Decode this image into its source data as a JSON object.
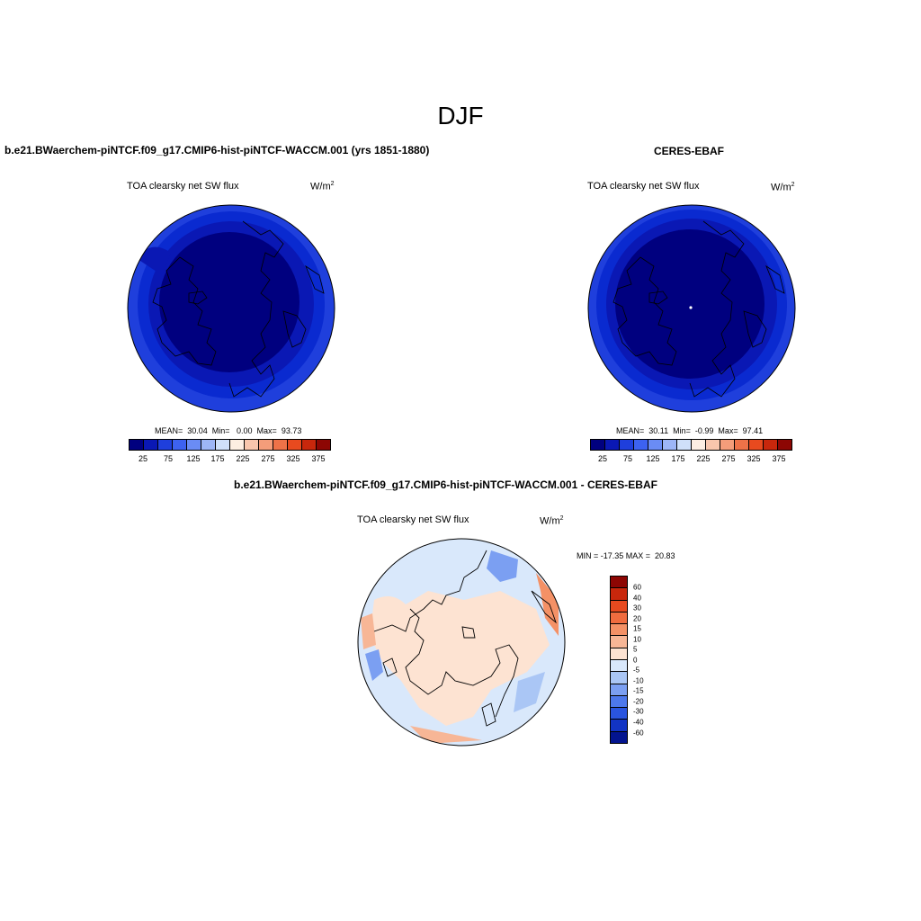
{
  "figure": {
    "title": "DJF"
  },
  "panels": [
    {
      "heading": "b.e21.BWaerchem-piNTCF.f09_g17.CMIP6-hist-piNTCF-WACCM.001 (yrs 1851-1880)",
      "variable": "TOA clearsky net SW flux",
      "units": "W/m",
      "units_sup": "2",
      "stats": "MEAN=  30.04  Min=   0.00  Max=  93.73",
      "colorbar_ticks": [
        "25",
        "75",
        "125",
        "175",
        "225",
        "275",
        "325",
        "375"
      ]
    },
    {
      "heading": "CERES-EBAF",
      "variable": "TOA clearsky net SW flux",
      "units": "W/m",
      "units_sup": "2",
      "stats": "MEAN=  30.11  Min=  -0.99  Max=  97.41",
      "colorbar_ticks": [
        "25",
        "75",
        "125",
        "175",
        "225",
        "275",
        "325",
        "375"
      ]
    },
    {
      "heading": "b.e21.BWaerchem-piNTCF.f09_g17.CMIP6-hist-piNTCF-WACCM.001 - CERES-EBAF",
      "variable": "TOA clearsky net SW flux",
      "units": "W/m",
      "units_sup": "2",
      "stats": "MIN = -17.35 MAX =  20.83",
      "colorbar_ticks": [
        "60",
        "40",
        "30",
        "20",
        "15",
        "10",
        "5",
        "0",
        "-5",
        "-10",
        "-15",
        "-20",
        "-30",
        "-40",
        "-60"
      ]
    }
  ],
  "colors": {
    "abs_scale": [
      "#00007f",
      "#0a18b4",
      "#1f3fdc",
      "#3d62f0",
      "#6a8cf5",
      "#9db6f7",
      "#cfe0fa",
      "#fdeee2",
      "#f8c6ad",
      "#f49d7a",
      "#ee7248",
      "#e84a1f",
      "#c8270c",
      "#8d0603"
    ],
    "diff_scale": [
      "#8d0603",
      "#c8270c",
      "#e84a1f",
      "#f06c3f",
      "#f49166",
      "#f7b696",
      "#fde3d2",
      "#d9e8fb",
      "#aac6f5",
      "#7b9ff2",
      "#4d78ec",
      "#2a55e0",
      "#1234c4",
      "#03148f"
    ]
  }
}
